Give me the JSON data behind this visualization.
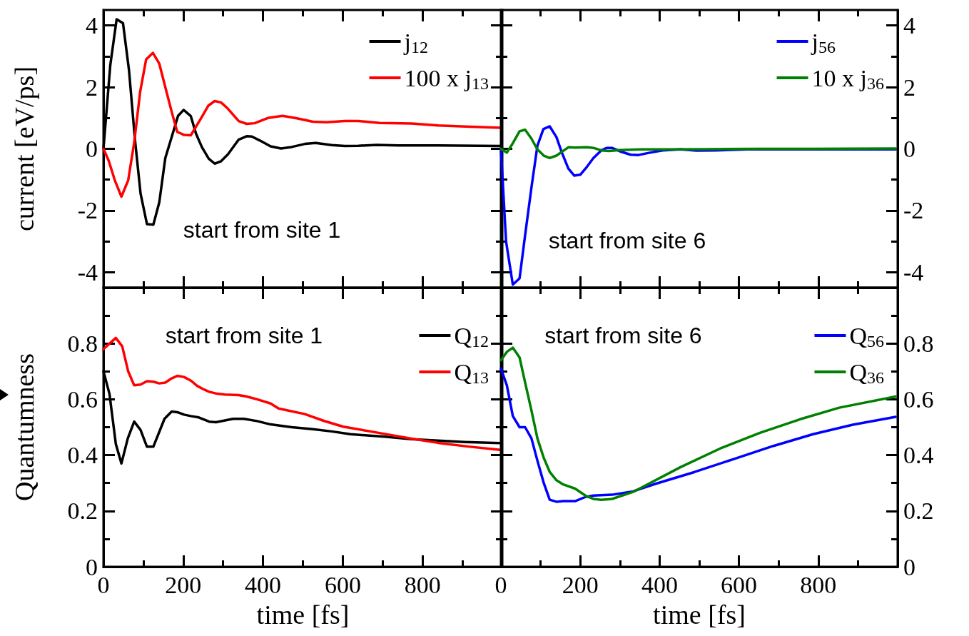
{
  "chart_data": [
    {
      "type": "line",
      "ylabel": "current [eV/ps]",
      "annotations": [
        "start from site 1"
      ],
      "legend": "top right",
      "grid": false,
      "marker": "none",
      "line_style": "solid",
      "tick_labels": "y",
      "xlim": [
        0,
        1000
      ],
      "ylim": [
        -4.5,
        4.5
      ],
      "xticks": [
        0,
        {
          "value": 100,
          "label": null
        },
        200,
        {
          "value": 300,
          "label": null
        },
        400,
        {
          "value": 500,
          "label": null
        },
        600,
        {
          "value": 700,
          "label": null
        },
        800,
        {
          "value": 900,
          "label": null
        }
      ],
      "yticks": [
        -4,
        {
          "value": -3,
          "label": null
        },
        -2,
        {
          "value": -1,
          "label": null
        },
        0,
        {
          "value": 1,
          "label": null
        },
        2,
        {
          "value": 3,
          "label": null
        },
        4
      ],
      "series": [
        {
          "name": "j$_{12}$",
          "color": "#000000",
          "x": [
            0,
            17,
            33,
            49,
            64,
            79,
            93,
            109,
            125,
            140,
            155,
            171,
            187,
            201,
            219,
            232,
            247,
            264,
            279,
            294,
            312,
            339,
            359,
            372,
            392,
            419,
            445,
            472,
            505,
            532,
            572,
            605,
            639,
            685,
            739,
            839,
            995
          ],
          "values": [
            0,
            2.7,
            4.2,
            4.07,
            2.55,
            0.3,
            -1.45,
            -2.44,
            -2.46,
            -1.73,
            -0.3,
            0.38,
            1.07,
            1.26,
            1.06,
            0.49,
            0.05,
            -0.32,
            -0.48,
            -0.41,
            -0.18,
            0.3,
            0.41,
            0.4,
            0.27,
            0.08,
            0.01,
            0.06,
            0.16,
            0.19,
            0.12,
            0.09,
            0.1,
            0.13,
            0.11,
            0.11,
            0.09
          ]
        },
        {
          "name": "100 x j$_{13}$",
          "color": "#ff0000",
          "x": [
            0,
            13,
            29,
            45,
            62,
            77,
            92,
            107,
            124,
            140,
            155,
            171,
            185,
            202,
            219,
            245,
            263,
            279,
            295,
            312,
            339,
            359,
            379,
            412,
            449,
            485,
            525,
            559,
            605,
            639,
            692,
            772,
            839,
            919,
            995
          ],
          "values": [
            0,
            -0.38,
            -1.04,
            -1.55,
            -1.02,
            0.2,
            1.85,
            2.9,
            3.11,
            2.76,
            2.0,
            1.2,
            0.55,
            0.45,
            0.44,
            1.0,
            1.4,
            1.55,
            1.5,
            1.3,
            0.9,
            0.81,
            0.83,
            1.0,
            1.07,
            0.99,
            0.88,
            0.86,
            0.9,
            0.9,
            0.84,
            0.82,
            0.76,
            0.72,
            0.68
          ]
        }
      ]
    },
    {
      "type": "line",
      "annotations": [
        "start from site 6"
      ],
      "legend": "top right",
      "grid": false,
      "marker": "none",
      "line_style": "solid",
      "tick_labels": "y",
      "xlim": [
        0,
        1000
      ],
      "ylim": [
        -4.5,
        4.5
      ],
      "xticks": [
        0,
        {
          "value": 100,
          "label": null
        },
        200,
        {
          "value": 300,
          "label": null
        },
        400,
        {
          "value": 500,
          "label": null
        },
        600,
        {
          "value": 700,
          "label": null
        },
        800,
        {
          "value": 900,
          "label": null
        }
      ],
      "yticks": [
        -4,
        {
          "value": -3,
          "label": null
        },
        -2,
        {
          "value": -1,
          "label": null
        },
        0,
        {
          "value": 1,
          "label": null
        },
        2,
        {
          "value": 3,
          "label": null
        },
        4
      ],
      "series": [
        {
          "name": "j$_{56}$",
          "color": "#0000ff",
          "x": [
            0,
            13,
            30,
            47,
            61,
            77,
            92,
            107,
            123,
            140,
            153,
            170,
            185,
            200,
            217,
            233,
            253,
            267,
            280,
            300,
            327,
            347,
            373,
            407,
            453,
            493,
            540,
            620,
            720,
            853,
            995
          ],
          "values": [
            0,
            -3.0,
            -4.4,
            -4.2,
            -2.8,
            -1.25,
            0.1,
            0.64,
            0.73,
            0.38,
            -0.1,
            -0.64,
            -0.87,
            -0.84,
            -0.58,
            -0.3,
            -0.05,
            0.03,
            0.03,
            -0.08,
            -0.19,
            -0.2,
            -0.13,
            -0.05,
            -0.02,
            -0.06,
            -0.05,
            -0.02,
            -0.02,
            -0.02,
            -0.02
          ]
        },
        {
          "name": "10 x j$_{36}$",
          "color": "#008000",
          "x": [
            0,
            15,
            30,
            47,
            61,
            77,
            92,
            108,
            123,
            140,
            170,
            187,
            217,
            233,
            253,
            273,
            300,
            353,
            420,
            520,
            653,
            787,
            995
          ],
          "values": [
            0,
            -0.12,
            0.18,
            0.57,
            0.62,
            0.33,
            -0.02,
            -0.22,
            -0.3,
            -0.22,
            0.05,
            0.04,
            0.05,
            0.03,
            -0.05,
            -0.07,
            -0.04,
            -0.02,
            -0.02,
            -0.01,
            0.0,
            0.0,
            0.01
          ]
        }
      ]
    },
    {
      "type": "line",
      "xlabel": "time [fs]",
      "ylabel": "Quantumness",
      "annotations": [
        "start from site 1"
      ],
      "legend": "top right",
      "grid": false,
      "marker": "none",
      "line_style": "solid",
      "xlim": [
        0,
        1000
      ],
      "ylim": [
        0,
        1
      ],
      "xticks": [
        0,
        {
          "value": 100,
          "label": null
        },
        200,
        {
          "value": 300,
          "label": null
        },
        400,
        {
          "value": 500,
          "label": null
        },
        600,
        {
          "value": 700,
          "label": null
        },
        800,
        {
          "value": 900,
          "label": null
        }
      ],
      "yticks": [
        0,
        {
          "value": 0.1,
          "label": null
        },
        0.2,
        {
          "value": 0.3,
          "label": null
        },
        0.4,
        {
          "value": 0.5,
          "label": null
        },
        0.6,
        {
          "value": 0.7,
          "label": null
        },
        0.8,
        {
          "value": 0.9,
          "label": null
        }
      ],
      "series": [
        {
          "name": "Q$_{12}$",
          "color": "#000000",
          "x": [
            0,
            15,
            31,
            45,
            61,
            77,
            93,
            109,
            125,
            153,
            171,
            185,
            202,
            219,
            239,
            265,
            282,
            325,
            352,
            385,
            419,
            472,
            525,
            572,
            619,
            705,
            772,
            839,
            905,
            995
          ],
          "values": [
            0.7,
            0.62,
            0.44,
            0.37,
            0.46,
            0.52,
            0.49,
            0.43,
            0.43,
            0.53,
            0.556,
            0.554,
            0.545,
            0.54,
            0.535,
            0.52,
            0.518,
            0.53,
            0.53,
            0.522,
            0.51,
            0.5,
            0.493,
            0.485,
            0.475,
            0.466,
            0.457,
            0.452,
            0.447,
            0.443
          ]
        },
        {
          "name": "Q$_{13}$",
          "color": "#ff0000",
          "x": [
            0,
            31,
            47,
            62,
            77,
            93,
            109,
            125,
            140,
            155,
            171,
            185,
            202,
            219,
            235,
            252,
            265,
            285,
            305,
            339,
            359,
            385,
            419,
            439,
            505,
            552,
            601,
            705,
            772,
            839,
            919,
            995
          ],
          "values": [
            0.78,
            0.82,
            0.79,
            0.7,
            0.65,
            0.653,
            0.665,
            0.663,
            0.657,
            0.66,
            0.675,
            0.684,
            0.68,
            0.667,
            0.648,
            0.635,
            0.627,
            0.62,
            0.617,
            0.615,
            0.61,
            0.6,
            0.585,
            0.567,
            0.547,
            0.523,
            0.502,
            0.476,
            0.459,
            0.444,
            0.43,
            0.419
          ]
        }
      ]
    },
    {
      "type": "line",
      "xlabel": "time [fs]",
      "annotations": [
        "start from site 6"
      ],
      "legend": "top right",
      "grid": false,
      "marker": "none",
      "line_style": "solid",
      "xlim": [
        0,
        1000
      ],
      "ylim": [
        0,
        1
      ],
      "xticks": [
        0,
        {
          "value": 100,
          "label": null
        },
        200,
        {
          "value": 300,
          "label": null
        },
        400,
        {
          "value": 500,
          "label": null
        },
        600,
        {
          "value": 700,
          "label": null
        },
        800,
        {
          "value": 900,
          "label": null
        }
      ],
      "yticks": [
        0,
        {
          "value": 0.1,
          "label": null
        },
        0.2,
        {
          "value": 0.3,
          "label": null
        },
        0.4,
        {
          "value": 0.5,
          "label": null
        },
        0.6,
        {
          "value": 0.7,
          "label": null
        },
        0.8,
        {
          "value": 0.9,
          "label": null
        }
      ],
      "series": [
        {
          "name": "Q$_{56}$",
          "color": "#0000ff",
          "x": [
            0,
            15,
            30,
            47,
            61,
            77,
            92,
            108,
            123,
            140,
            157,
            187,
            213,
            233,
            280,
            333,
            387,
            487,
            587,
            687,
            787,
            887,
            995
          ],
          "values": [
            0.71,
            0.65,
            0.54,
            0.5,
            0.5,
            0.46,
            0.38,
            0.3,
            0.24,
            0.233,
            0.235,
            0.235,
            0.25,
            0.255,
            0.258,
            0.27,
            0.296,
            0.339,
            0.386,
            0.433,
            0.475,
            0.509,
            0.537
          ]
        },
        {
          "name": "Q$_{36}$",
          "color": "#008000",
          "x": [
            0,
            15,
            30,
            47,
            61,
            77,
            92,
            108,
            123,
            140,
            157,
            187,
            213,
            233,
            253,
            280,
            333,
            453,
            553,
            653,
            753,
            853,
            995
          ],
          "values": [
            0.74,
            0.77,
            0.785,
            0.75,
            0.66,
            0.56,
            0.46,
            0.39,
            0.34,
            0.31,
            0.295,
            0.28,
            0.255,
            0.243,
            0.24,
            0.243,
            0.268,
            0.357,
            0.424,
            0.48,
            0.528,
            0.57,
            0.61
          ]
        }
      ]
    }
  ]
}
